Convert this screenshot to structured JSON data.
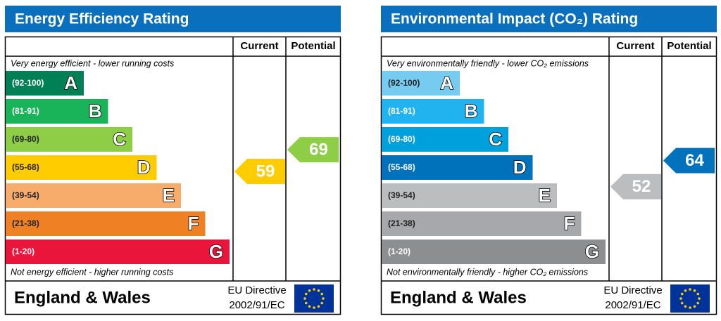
{
  "panels": [
    {
      "title": "Energy Efficiency Rating",
      "title_color": "#0a6fbd",
      "headers": [
        "Current",
        "Potential"
      ],
      "top_text": "Very energy efficient - lower running costs",
      "bottom_text": "Not energy efficient - higher running costs",
      "bands": [
        {
          "range": "(92-100)",
          "letter": "A",
          "color": "#008054"
        },
        {
          "range": "(81-91)",
          "letter": "B",
          "color": "#19b459"
        },
        {
          "range": "(69-80)",
          "letter": "C",
          "color": "#8dce46"
        },
        {
          "range": "(55-68)",
          "letter": "D",
          "color": "#ffcc00"
        },
        {
          "range": "(39-54)",
          "letter": "E",
          "color": "#f7ac6b"
        },
        {
          "range": "(21-38)",
          "letter": "F",
          "color": "#ef8023"
        },
        {
          "range": "(1-20)",
          "letter": "G",
          "color": "#e9153b"
        }
      ],
      "current": {
        "value": 59,
        "color": "#ffcc00"
      },
      "potential": {
        "value": 69,
        "color": "#8dce46"
      },
      "region": "England & Wales",
      "directive": [
        "EU Directive",
        "2002/91/EC"
      ]
    },
    {
      "title": "Environmental Impact (CO₂) Rating",
      "title_color": "#0a6fbd",
      "headers": [
        "Current",
        "Potential"
      ],
      "top_text": "Very environmentally friendly - lower CO₂ emissions",
      "bottom_text": "Not environmentally friendly - higher CO₂ emissions",
      "bands": [
        {
          "range": "(92-100)",
          "letter": "A",
          "color": "#75cbf0"
        },
        {
          "range": "(81-91)",
          "letter": "B",
          "color": "#20b3f0"
        },
        {
          "range": "(69-80)",
          "letter": "C",
          "color": "#00a0dc"
        },
        {
          "range": "(55-68)",
          "letter": "D",
          "color": "#0072bc"
        },
        {
          "range": "(39-54)",
          "letter": "E",
          "color": "#bbbdbf"
        },
        {
          "range": "(21-38)",
          "letter": "F",
          "color": "#a6a8ab"
        },
        {
          "range": "(1-20)",
          "letter": "G",
          "color": "#8c8e90"
        }
      ],
      "current": {
        "value": 52,
        "color": "#bbbdbf"
      },
      "potential": {
        "value": 64,
        "color": "#0072bc"
      },
      "region": "England & Wales",
      "directive": [
        "EU Directive",
        "2002/91/EC"
      ]
    }
  ]
}
